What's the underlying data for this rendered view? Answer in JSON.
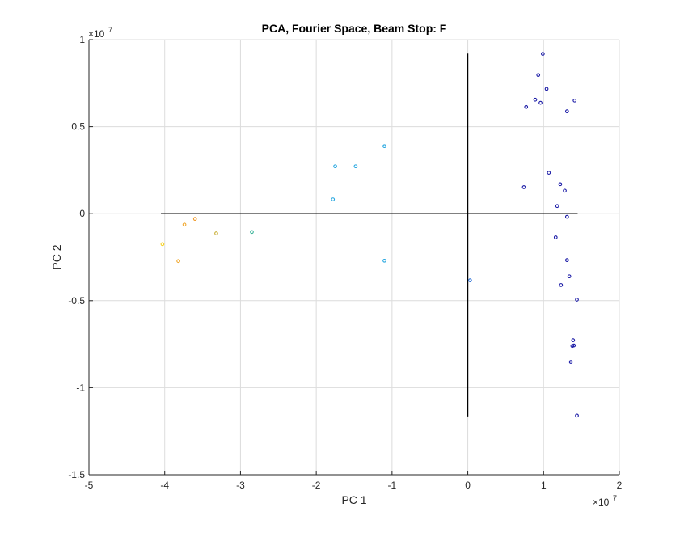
{
  "chart_data": {
    "type": "scatter",
    "title": "PCA, Fourier Space, Beam Stop: F",
    "xlabel": "PC 1",
    "ylabel": "PC 2",
    "x_exponent": "×10",
    "x_exponent_power": "7",
    "y_exponent": "×10",
    "y_exponent_power": "7",
    "xlim": [
      -5,
      2
    ],
    "ylim": [
      -1.5,
      1
    ],
    "xticks": [
      -5,
      -4,
      -3,
      -2,
      -1,
      0,
      1,
      2
    ],
    "xtick_labels": [
      "-5",
      "-4",
      "-3",
      "-2",
      "-1",
      "0",
      "1",
      "2"
    ],
    "yticks": [
      -1.5,
      -1,
      -0.5,
      0,
      0.5,
      1
    ],
    "ytick_labels": [
      "-1.5",
      "-1",
      "-0.5",
      "0",
      "0.5",
      "1"
    ],
    "grid": true,
    "reference_lines": [
      {
        "orientation": "horizontal",
        "y": 0,
        "x_from": -4.05,
        "x_to": 1.45
      },
      {
        "orientation": "vertical",
        "x": 0,
        "y_from": -1.165,
        "y_to": 0.92
      }
    ],
    "points": [
      {
        "x": 0.99,
        "y": 0.918,
        "color": "#1a1aa6"
      },
      {
        "x": 0.93,
        "y": 0.797,
        "color": "#1a1aa6"
      },
      {
        "x": 1.04,
        "y": 0.717,
        "color": "#1a1aa6"
      },
      {
        "x": 0.89,
        "y": 0.655,
        "color": "#1a1aa6"
      },
      {
        "x": 0.96,
        "y": 0.637,
        "color": "#1a1aa6"
      },
      {
        "x": 1.41,
        "y": 0.65,
        "color": "#1a1aa6"
      },
      {
        "x": 0.77,
        "y": 0.613,
        "color": "#1a1aa6"
      },
      {
        "x": 1.31,
        "y": 0.588,
        "color": "#1a1aa6"
      },
      {
        "x": 1.07,
        "y": 0.235,
        "color": "#1a1aa6"
      },
      {
        "x": 1.22,
        "y": 0.169,
        "color": "#1a1aa6"
      },
      {
        "x": 0.74,
        "y": 0.152,
        "color": "#1a1aa6"
      },
      {
        "x": 1.28,
        "y": 0.132,
        "color": "#1a1aa6"
      },
      {
        "x": 1.18,
        "y": 0.044,
        "color": "#1a1aa6"
      },
      {
        "x": 1.31,
        "y": -0.018,
        "color": "#1a1aa6"
      },
      {
        "x": 1.16,
        "y": -0.136,
        "color": "#1a1aa6"
      },
      {
        "x": 1.31,
        "y": -0.267,
        "color": "#1a1aa6"
      },
      {
        "x": 1.34,
        "y": -0.36,
        "color": "#1a1aa6"
      },
      {
        "x": 1.23,
        "y": -0.41,
        "color": "#1a1aa6"
      },
      {
        "x": 1.44,
        "y": -0.494,
        "color": "#1a1aa6"
      },
      {
        "x": 1.39,
        "y": -0.727,
        "color": "#1a1aa6"
      },
      {
        "x": 1.4,
        "y": -0.757,
        "color": "#1a1aa6"
      },
      {
        "x": 1.38,
        "y": -0.76,
        "color": "#1a1aa6"
      },
      {
        "x": 1.36,
        "y": -0.852,
        "color": "#1a1aa6"
      },
      {
        "x": 1.44,
        "y": -1.16,
        "color": "#1a1aa6"
      },
      {
        "x": 0.03,
        "y": -0.383,
        "color": "#2a6fd6"
      },
      {
        "x": -1.1,
        "y": 0.388,
        "color": "#27a7e0"
      },
      {
        "x": -1.75,
        "y": 0.272,
        "color": "#27a7e0"
      },
      {
        "x": -1.48,
        "y": 0.272,
        "color": "#27a7e0"
      },
      {
        "x": -1.78,
        "y": 0.082,
        "color": "#27a7e0"
      },
      {
        "x": -1.1,
        "y": -0.27,
        "color": "#27a7e0"
      },
      {
        "x": -2.85,
        "y": -0.105,
        "color": "#3cb49a"
      },
      {
        "x": -3.32,
        "y": -0.113,
        "color": "#c9b03b"
      },
      {
        "x": -3.6,
        "y": -0.03,
        "color": "#f09a2a"
      },
      {
        "x": -3.74,
        "y": -0.063,
        "color": "#f0a830"
      },
      {
        "x": -4.03,
        "y": -0.175,
        "color": "#f7d21f"
      },
      {
        "x": -3.82,
        "y": -0.272,
        "color": "#f0a830"
      }
    ]
  }
}
